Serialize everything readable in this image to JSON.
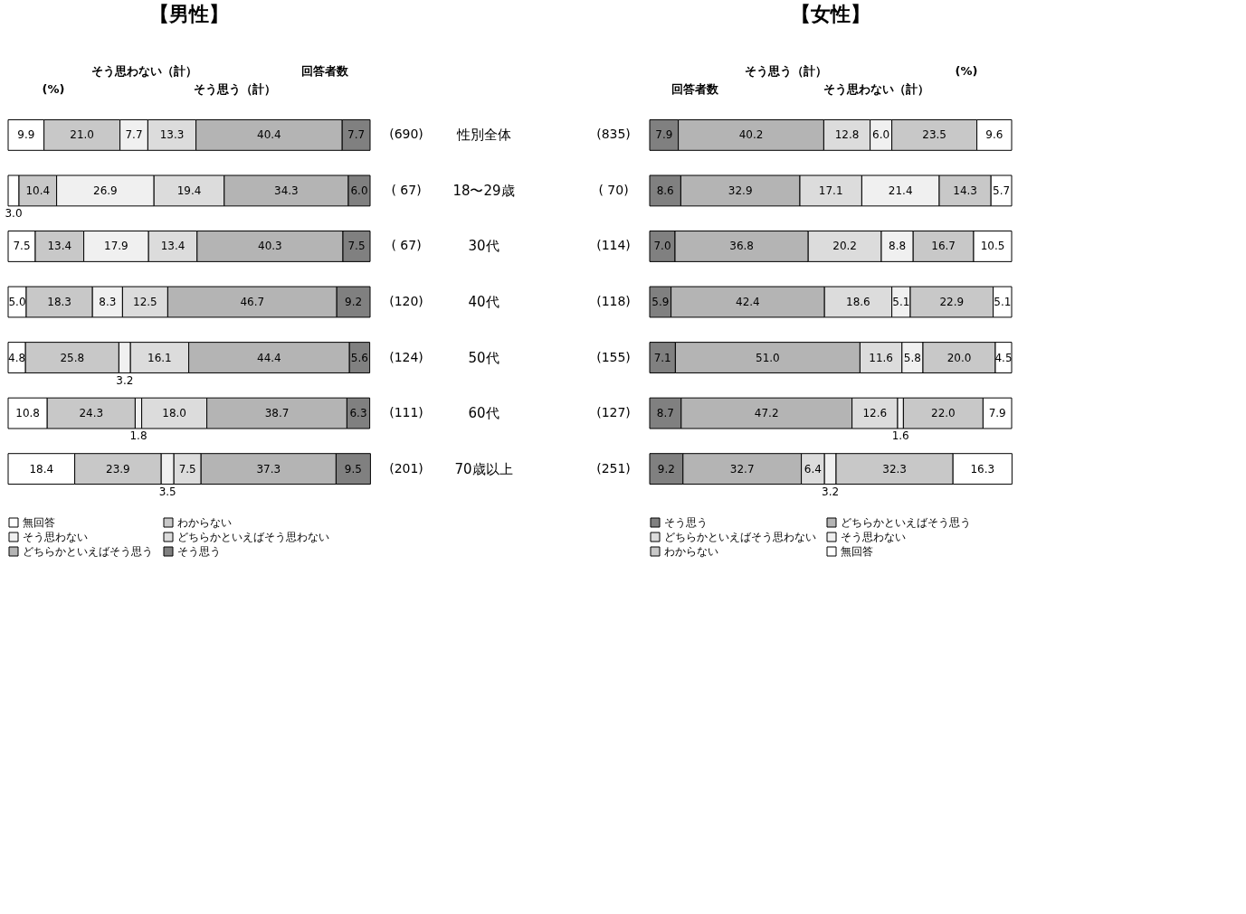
{
  "chart_data": [
    {
      "type": "bar",
      "orientation": "horizontal",
      "stacked": true,
      "title": "【男性】",
      "xlim": [
        0,
        100
      ],
      "legend": "bottom",
      "tick_labels": "y",
      "categories": [
        "性別全体",
        "18〜29歳",
        "30代",
        "40代",
        "50代",
        "60代",
        "70歳以上"
      ],
      "series": [
        {
          "name": "無回答",
          "color": "#ffffff",
          "values": [
            9.9,
            3.0,
            7.5,
            5.0,
            4.8,
            10.8,
            18.4
          ],
          "value_labels": [
            "9.9",
            "3.0",
            "7.5",
            "5.0",
            "4.8",
            "10.8",
            "18.4"
          ]
        },
        {
          "name": "わからない",
          "color": "#c8c8c8",
          "values": [
            21.0,
            10.4,
            13.4,
            18.3,
            25.8,
            24.3,
            23.9
          ],
          "value_labels": [
            "21.0",
            "10.4",
            "13.4",
            "18.3",
            "25.8",
            "24.3",
            "23.9"
          ]
        },
        {
          "name": "そう思わない",
          "color": "#f0f0f0",
          "values": [
            7.7,
            26.9,
            17.9,
            8.3,
            3.2,
            1.8,
            3.5
          ],
          "value_labels": [
            "7.7",
            "26.9",
            "17.9",
            "8.3",
            "3.2",
            "1.8",
            "3.5"
          ]
        },
        {
          "name": "どちらかといえばそう思わない",
          "color": "#dcdcdc",
          "values": [
            13.3,
            19.4,
            13.4,
            12.5,
            16.1,
            18.0,
            7.5
          ],
          "value_labels": [
            "13.3",
            "19.4",
            "13.4",
            "12.5",
            "16.1",
            "18.0",
            "7.5"
          ]
        },
        {
          "name": "どちらかといえばそう思う",
          "color": "#b4b4b4",
          "values": [
            40.4,
            34.3,
            40.3,
            46.7,
            44.4,
            38.7,
            37.3
          ],
          "value_labels": [
            "40.4",
            "34.3",
            "40.3",
            "46.7",
            "44.4",
            "38.7",
            "37.3"
          ]
        },
        {
          "name": "そう思う",
          "color": "#808080",
          "values": [
            7.7,
            6.0,
            7.5,
            9.2,
            5.6,
            6.3,
            9.5
          ],
          "value_labels": [
            "7.7",
            "6.0",
            "7.5",
            "9.2",
            "5.6",
            "6.3",
            "9.5"
          ]
        }
      ],
      "annotations": [
        "(%)",
        "そう思わない（計）",
        "そう思う（計）",
        "回答者数",
        "(690)",
        "( 67)",
        "( 67)",
        "(120)",
        "(124)",
        "(111)",
        "(201)"
      ]
    },
    {
      "type": "bar",
      "orientation": "horizontal",
      "stacked": true,
      "title": "【女性】",
      "xlim": [
        0,
        100
      ],
      "legend": "bottom",
      "tick_labels": false,
      "categories": [
        null,
        null,
        null,
        null,
        null,
        null,
        null
      ],
      "series": [
        {
          "name": "そう思う",
          "color": "#808080",
          "values": [
            7.9,
            8.6,
            7.0,
            5.9,
            7.1,
            8.7,
            9.2
          ],
          "value_labels": [
            "7.9",
            "8.6",
            "7.0",
            "5.9",
            "7.1",
            "8.7",
            "9.2"
          ]
        },
        {
          "name": "どちらかといえばそう思う",
          "color": "#b4b4b4",
          "values": [
            40.2,
            32.9,
            36.8,
            42.4,
            51.0,
            47.2,
            32.7
          ],
          "value_labels": [
            "40.2",
            "32.9",
            "36.8",
            "42.4",
            "51.0",
            "47.2",
            "32.7"
          ]
        },
        {
          "name": "どちらかといえばそう思わない",
          "color": "#dcdcdc",
          "values": [
            12.8,
            17.1,
            20.2,
            18.6,
            11.6,
            12.6,
            6.4
          ],
          "value_labels": [
            "12.8",
            "17.1",
            "20.2",
            "18.6",
            "11.6",
            "12.6",
            "6.4"
          ]
        },
        {
          "name": "そう思わない",
          "color": "#f0f0f0",
          "values": [
            6.0,
            21.4,
            8.8,
            5.1,
            5.8,
            1.6,
            3.2
          ],
          "value_labels": [
            "6.0",
            "21.4",
            "8.8",
            "5.1",
            "5.8",
            "1.6",
            "3.2"
          ]
        },
        {
          "name": "わからない",
          "color": "#c8c8c8",
          "values": [
            23.5,
            14.3,
            16.7,
            22.9,
            20.0,
            22.0,
            32.3
          ],
          "value_labels": [
            "23.5",
            "14.3",
            "16.7",
            "22.9",
            "20.0",
            "22.0",
            "32.3"
          ]
        },
        {
          "name": "無回答",
          "color": "#ffffff",
          "values": [
            9.6,
            5.7,
            10.5,
            5.1,
            4.5,
            7.9,
            16.3
          ],
          "value_labels": [
            "9.6",
            "5.7",
            "10.5",
            "5.1",
            "4.5",
            "7.9",
            "16.3"
          ]
        }
      ],
      "annotations": [
        "回答者数",
        "そう思う（計）",
        "そう思わない（計）",
        "(%)",
        "(835)",
        "( 70)",
        "(114)",
        "(118)",
        "(155)",
        "(127)",
        "(251)"
      ]
    }
  ]
}
